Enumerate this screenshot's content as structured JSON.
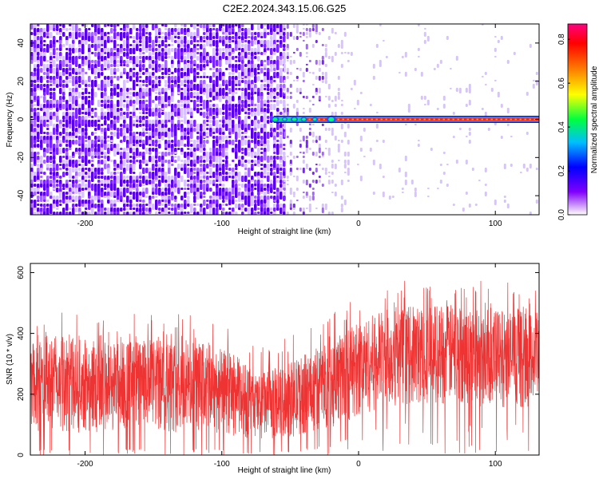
{
  "title": "C2E2.2024.343.15.06.G25",
  "chart_data": [
    {
      "type": "heatmap",
      "title": "C2E2.2024.343.15.06.G25",
      "xlabel": "Height of straight line (km)",
      "ylabel": "Frequency (Hz)",
      "xlim": [
        -240,
        132
      ],
      "ylim": [
        -50,
        50
      ],
      "x_ticks": [
        -200,
        -100,
        0,
        100
      ],
      "y_ticks": [
        -40,
        -20,
        0,
        20,
        40
      ],
      "colorbar": {
        "label": "Normalized spectral amplitude",
        "range": [
          0.0,
          0.87
        ],
        "ticks": [
          "0.0",
          "0.2",
          "0.4",
          "0.6",
          "0.8"
        ],
        "colors": [
          "#ffffff",
          "#8000ff",
          "#0000ff",
          "#00bfff",
          "#00ff40",
          "#ffff00",
          "#ff8000",
          "#ff0000",
          "#ff0080"
        ]
      },
      "features": {
        "noise_region": {
          "x_from": -240,
          "x_to": -55,
          "amplitude": 0.15
        },
        "sparse_region": {
          "x_from": -55,
          "x_to": 132,
          "amplitude": 0.03
        },
        "carrier_line": {
          "frequency": 0,
          "x_from": -62,
          "x_to": 132,
          "amplitude": 0.8
        }
      }
    },
    {
      "type": "line",
      "xlabel": "Height of straight line (km)",
      "ylabel": "SNR (10 * v/v)",
      "xlim": [
        -240,
        132
      ],
      "ylim": [
        0,
        630
      ],
      "x_ticks": [
        -200,
        -100,
        0,
        100
      ],
      "y_ticks": [
        0,
        200,
        400,
        600
      ],
      "color": "#ee3333",
      "envelope": {
        "x": [
          -240,
          -200,
          -150,
          -110,
          -90,
          -75,
          -60,
          -40,
          -20,
          0,
          20,
          60,
          100,
          132
        ],
        "upper": [
          400,
          380,
          380,
          370,
          330,
          270,
          280,
          330,
          380,
          440,
          480,
          500,
          480,
          470
        ],
        "lower": [
          20,
          20,
          20,
          20,
          15,
          10,
          10,
          20,
          40,
          70,
          100,
          110,
          100,
          100
        ]
      }
    }
  ]
}
